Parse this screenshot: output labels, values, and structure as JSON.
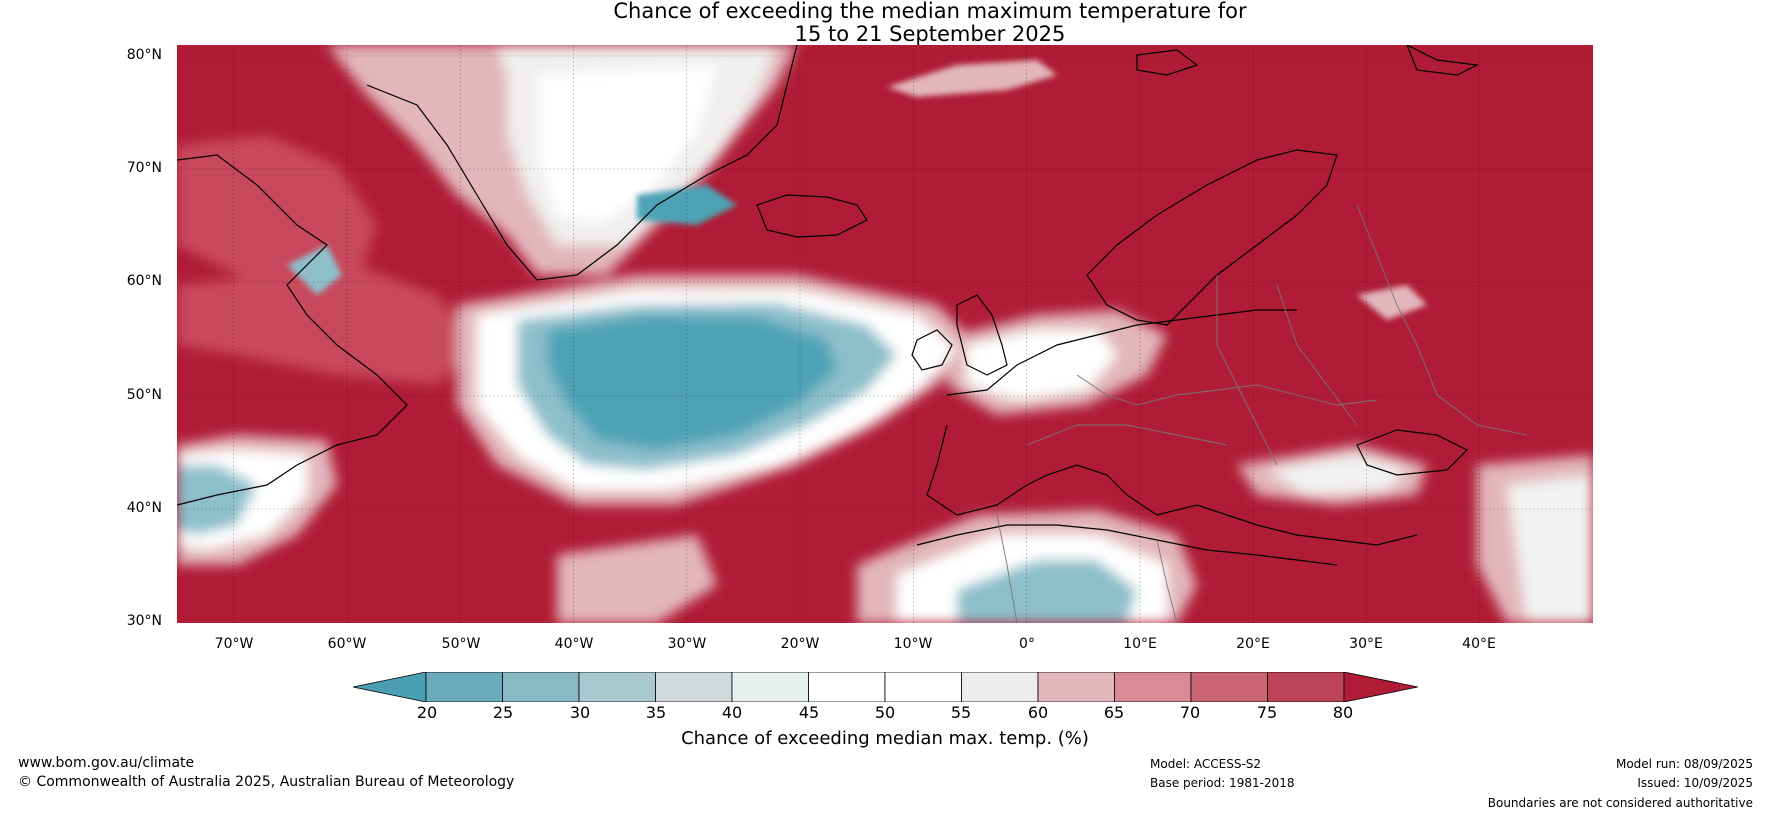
{
  "title": {
    "line1": "Chance of exceeding the median maximum temperature for",
    "line2": "15 to 21 September 2025"
  },
  "map": {
    "extent": {
      "lon": [
        -75,
        50
      ],
      "lat": [
        30,
        81
      ]
    },
    "lat_labels": [
      "80°N",
      "70°N",
      "60°N",
      "50°N",
      "40°N",
      "30°N"
    ],
    "lon_labels": [
      "70°W",
      "60°W",
      "50°W",
      "40°W",
      "30°W",
      "20°W",
      "10°W",
      "0°",
      "10°E",
      "20°E",
      "30°E",
      "40°E"
    ],
    "land_color": "#ffffff",
    "colors": {
      "hot": "#b01c36",
      "warm": "#c94a5c",
      "mild": "#e2b6bc",
      "neutral": "#f2f2f2",
      "cool": "#4ea3b5",
      "cooler": "#8dbfcb"
    }
  },
  "colorbar": {
    "ticks": [
      "20",
      "25",
      "30",
      "35",
      "40",
      "45",
      "50",
      "55",
      "60",
      "65",
      "70",
      "75",
      "80"
    ],
    "colors": [
      "#4a9fb2",
      "#6aabbb",
      "#8ab9c6",
      "#a9c8d0",
      "#d0dadb",
      "#e8efef",
      "#ffffff",
      "#ffffff",
      "#ececea",
      "#e3b6bd",
      "#d98a94",
      "#c96672",
      "#bd4456",
      "#b01c36"
    ],
    "label": "Chance of exceeding median max. temp. (%)"
  },
  "footer": {
    "website": "www.bom.gov.au/climate",
    "copyright": "© Commonwealth of Australia 2025, Australian Bureau of Meteorology",
    "model": "Model: ACCESS-S2",
    "base_period": "Base period: 1981-2018",
    "model_run": "Model run: 08/09/2025",
    "issued": "Issued: 10/09/2025",
    "disclaimer": "Boundaries are not considered authoritative"
  }
}
